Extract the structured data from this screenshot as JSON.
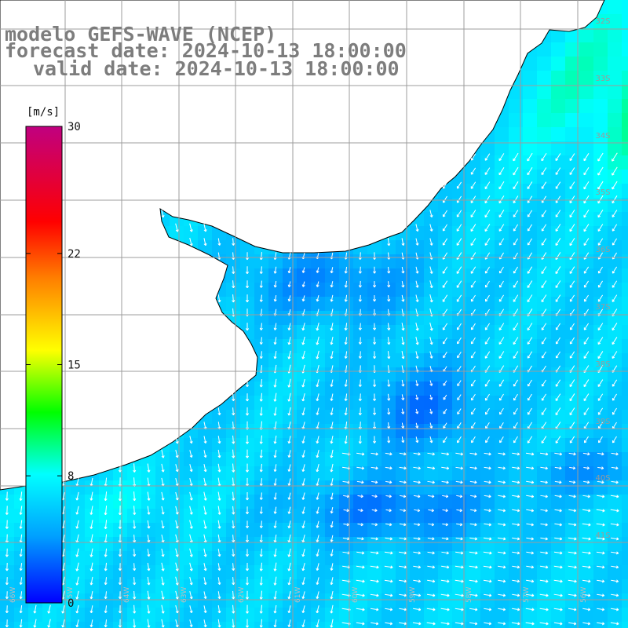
{
  "title": {
    "line1": "modelo GEFS-WAVE (NCEP)",
    "line2": "forecast date: 2024-10-13 18:00:00",
    "line3": "valid date: 2024-10-13 18:00:00"
  },
  "colorbar": {
    "unit": "[m/s]",
    "ticks": [
      "30",
      "22",
      "15",
      "8",
      "0"
    ],
    "tick_values": [
      30,
      22,
      15,
      8,
      0
    ],
    "min": 0,
    "max": 30,
    "colors": [
      "#0000ff",
      "#00a0ff",
      "#00ffff",
      "#00ff00",
      "#ffff00",
      "#ff8000",
      "#ff0000",
      "#c00080"
    ]
  },
  "map": {
    "lat_labels": [
      "32S",
      "33S",
      "34S",
      "35S",
      "36S",
      "37S",
      "38S",
      "39S",
      "40S",
      "41S"
    ],
    "lon_labels": [
      "66W",
      "65W",
      "64W",
      "63W",
      "62W",
      "61W",
      "60W",
      "59W",
      "58W",
      "57W",
      "56W"
    ],
    "land_color": "#ffffff",
    "grid_color": "#9c9c9c",
    "arrow_color": "#ffffff"
  }
}
